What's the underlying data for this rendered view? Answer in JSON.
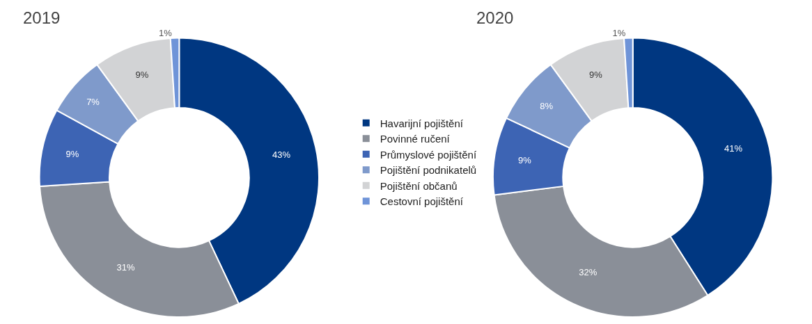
{
  "chart_data": [
    {
      "type": "donut",
      "title": "2019",
      "categories": [
        "Havarijní pojištění",
        "Povinné ručení",
        "Průmyslové pojištění",
        "Pojištění podnikatelů",
        "Pojištění občanů",
        "Cestovní pojištění"
      ],
      "values": [
        43,
        31,
        9,
        7,
        9,
        1
      ],
      "colors": [
        "#003781",
        "#8a8f98",
        "#3d64b4",
        "#7f9acb",
        "#d2d3d5",
        "#6f94d8"
      ],
      "value_labels": [
        "43%",
        "31%",
        "9%",
        "7%",
        "9%",
        "1%"
      ],
      "legend": "right"
    },
    {
      "type": "donut",
      "title": "2020",
      "categories": [
        null,
        null,
        null,
        null,
        null,
        null
      ],
      "values": [
        41,
        32,
        9,
        8,
        9,
        1
      ],
      "colors": [
        "#003781",
        "#8a8f98",
        "#3d64b4",
        "#7f9acb",
        "#d2d3d5",
        "#6f94d8"
      ],
      "value_labels": [
        "41%",
        "32%",
        "9%",
        "8%",
        "9%",
        "1%"
      ]
    }
  ]
}
